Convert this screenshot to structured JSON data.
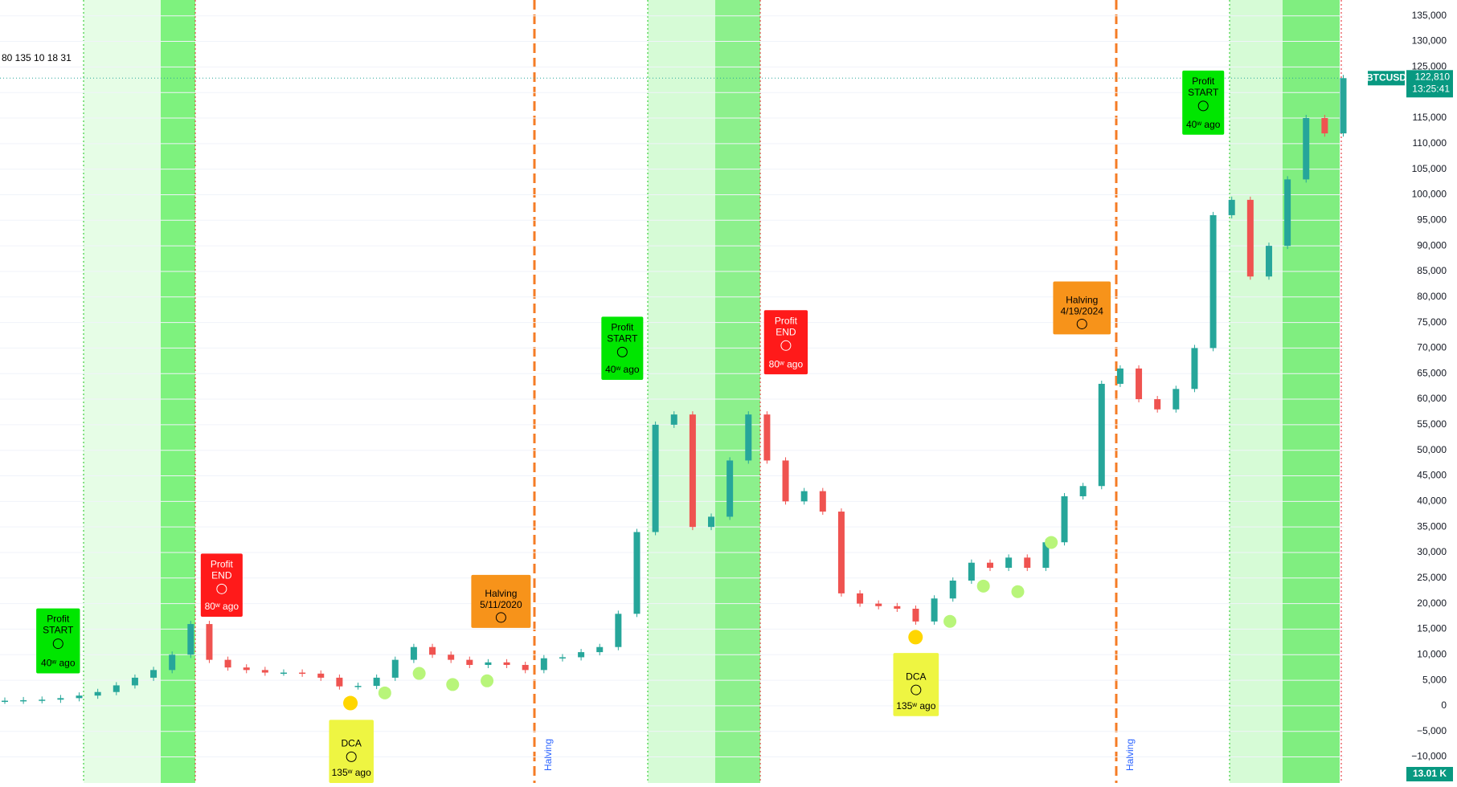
{
  "chart_data": {
    "type": "candlestick",
    "symbol": "BTCUSD",
    "indicator_text": "80 135 10 18 31",
    "last_price_label": "122,810",
    "countdown": "13:25:41",
    "volume_label": "13.01 K",
    "values": [
      1000,
      1100,
      1200,
      1500,
      2000,
      2700,
      4000,
      5500,
      7000,
      10000,
      16000,
      9000,
      7500,
      7000,
      6500,
      6500,
      6300,
      5500,
      3800,
      3900,
      5500,
      9000,
      11500,
      10000,
      9000,
      8000,
      8500,
      8000,
      7000,
      9300,
      9500,
      10500,
      11500,
      18000,
      34000,
      55000,
      57000,
      35000,
      37000,
      48000,
      57000,
      48000,
      40000,
      42000,
      38000,
      22000,
      20000,
      19500,
      19000,
      16500,
      21000,
      24500,
      28000,
      27000,
      29000,
      27000,
      32000,
      41000,
      43000,
      63000,
      66000,
      60000,
      58000,
      62000,
      70000,
      96000,
      99000,
      84000,
      90000,
      103000,
      115000,
      112000,
      122810
    ],
    "ylim": [
      -15100,
      138100
    ],
    "yticks": [
      {
        "value": -10000,
        "label": "−10,000"
      },
      {
        "value": -5000,
        "label": "−5,000"
      },
      0,
      {
        "value": 5000,
        "label": "5,000"
      },
      {
        "value": 10000,
        "label": "10,000"
      },
      {
        "value": 15000,
        "label": "15,000"
      },
      {
        "value": 20000,
        "label": "20,000"
      },
      {
        "value": 25000,
        "label": "25,000"
      },
      {
        "value": 30000,
        "label": "30,000"
      },
      {
        "value": 35000,
        "label": "35,000"
      },
      {
        "value": 40000,
        "label": "40,000"
      },
      {
        "value": 45000,
        "label": "45,000"
      },
      {
        "value": 50000,
        "label": "50,000"
      },
      {
        "value": 55000,
        "label": "55,000"
      },
      {
        "value": 60000,
        "label": "60,000"
      },
      {
        "value": 65000,
        "label": "65,000"
      },
      {
        "value": 70000,
        "label": "70,000"
      },
      {
        "value": 75000,
        "label": "75,000"
      },
      {
        "value": 80000,
        "label": "80,000"
      },
      {
        "value": 85000,
        "label": "85,000"
      },
      {
        "value": 90000,
        "label": "90,000"
      },
      {
        "value": 95000,
        "label": "95,000"
      },
      {
        "value": 100000,
        "label": "100,000"
      },
      {
        "value": 105000,
        "label": "105,000"
      },
      {
        "value": 110000,
        "label": "110,000"
      },
      {
        "value": 115000,
        "label": "115,000"
      },
      {
        "value": 120000,
        "label": "120,000"
      },
      {
        "value": 125000,
        "label": "125,000"
      },
      {
        "value": 130000,
        "label": "130,000"
      },
      {
        "value": 135000,
        "label": "135,000"
      }
    ],
    "grid": true,
    "up_color": "#26a69a",
    "down_color": "#ef5350",
    "annotations": [
      {
        "lines": [
          "Profit",
          "START",
          "40ʷ ago"
        ],
        "color": "#00e600"
      },
      {
        "lines": [
          "Profit",
          "END",
          "80ʷ ago"
        ],
        "color": "#ff1a1a"
      },
      {
        "lines": [
          "DCA",
          "135ʷ ago"
        ],
        "color": "#eef542"
      },
      {
        "lines": [
          "Halving",
          "5/11/2020"
        ],
        "color": "#f7931a"
      },
      {
        "lines": [
          "Profit",
          "START",
          "40ʷ ago"
        ],
        "color": "#00e600"
      },
      {
        "lines": [
          "Profit",
          "END",
          "80ʷ ago"
        ],
        "color": "#ff1a1a"
      },
      {
        "lines": [
          "DCA",
          "135ʷ ago"
        ],
        "color": "#eef542"
      },
      {
        "lines": [
          "Halving",
          "4/19/2024"
        ],
        "color": "#f7931a"
      },
      {
        "lines": [
          "Profit",
          "START",
          "40ʷ ago"
        ],
        "color": "#00e600"
      }
    ],
    "halving_labels": [
      "Halving",
      "Halving"
    ]
  }
}
